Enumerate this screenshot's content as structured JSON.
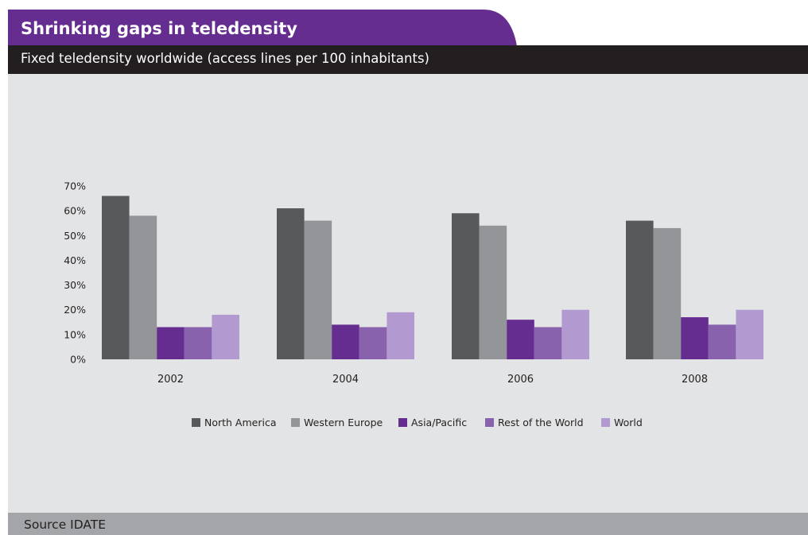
{
  "header": {
    "title": "Shrinking gaps in teledensity",
    "subtitle": "Fixed teledensity worldwide (access lines per 100 inhabitants)"
  },
  "footer": {
    "source": "Source IDATE"
  },
  "colors": {
    "title_band": "#662d91",
    "subtitle_bar": "#231f20",
    "plot_background": "#e3e4e5",
    "source_bar": "#a4a5a8"
  },
  "chart_data": {
    "type": "bar",
    "categories": [
      "2002",
      "2004",
      "2006",
      "2008"
    ],
    "series": [
      {
        "name": "North America",
        "color": "#58595b",
        "values": [
          66,
          61,
          59,
          56
        ]
      },
      {
        "name": "Western Europe",
        "color": "#939598",
        "values": [
          58,
          56,
          54,
          53
        ]
      },
      {
        "name": "Asia/Pacific",
        "color": "#662d91",
        "values": [
          13,
          14,
          16,
          17
        ]
      },
      {
        "name": "Rest of the World",
        "color": "#8862ad",
        "values": [
          13,
          13,
          13,
          14
        ]
      },
      {
        "name": "World",
        "color": "#b29ad0",
        "values": [
          18,
          19,
          20,
          20
        ]
      }
    ],
    "yticks": [
      "0%",
      "10%",
      "20%",
      "30%",
      "40%",
      "50%",
      "60%",
      "70%"
    ],
    "ylim": [
      0,
      70
    ],
    "grid": false,
    "legend_position": "bottom"
  }
}
